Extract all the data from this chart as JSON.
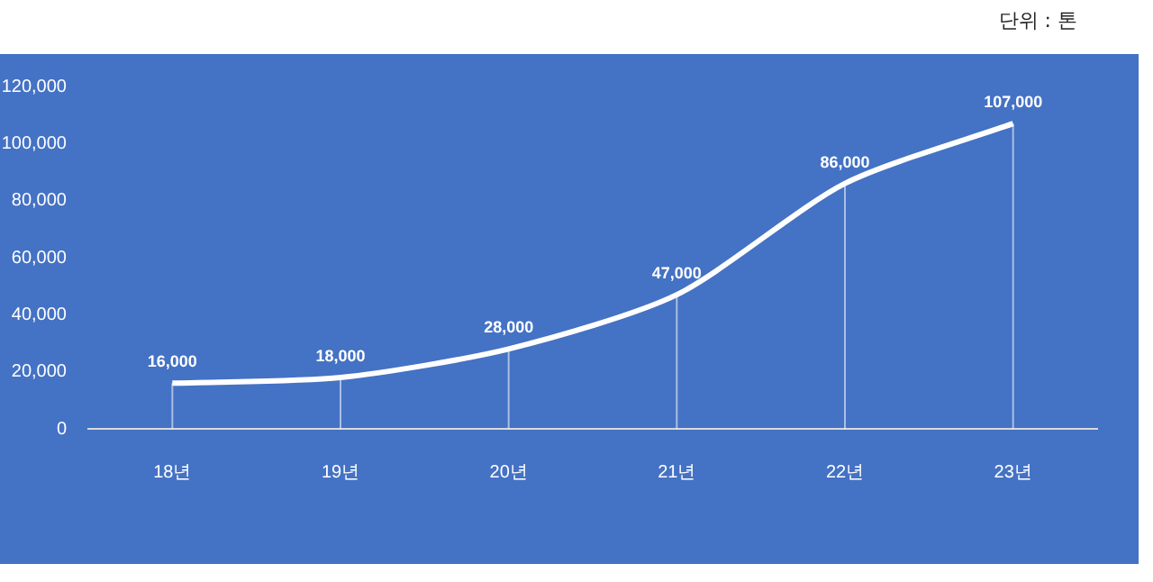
{
  "chart_data": {
    "type": "line",
    "categories": [
      "18년",
      "19년",
      "20년",
      "21년",
      "22년",
      "23년"
    ],
    "values": [
      16000,
      18000,
      28000,
      47000,
      86000,
      107000
    ],
    "color": "#ffffff",
    "ylim": [
      0,
      120000
    ],
    "yticks": [
      {
        "value": 0,
        "label": "0"
      },
      {
        "value": 20000,
        "label": "20,000"
      },
      {
        "value": 40000,
        "label": "40,000"
      },
      {
        "value": 60000,
        "label": "60,000"
      },
      {
        "value": 80000,
        "label": "80,000"
      },
      {
        "value": 100000,
        "label": "100,000"
      },
      {
        "value": 120000,
        "label": "120,000"
      }
    ],
    "value_labels": [
      "16,000",
      "18,000",
      "28,000",
      "47,000",
      "86,000",
      "107,000"
    ],
    "marker": "none",
    "line_style": "solid",
    "legend": false,
    "grid": "x",
    "annotations": [
      "단위 : 톤"
    ]
  }
}
